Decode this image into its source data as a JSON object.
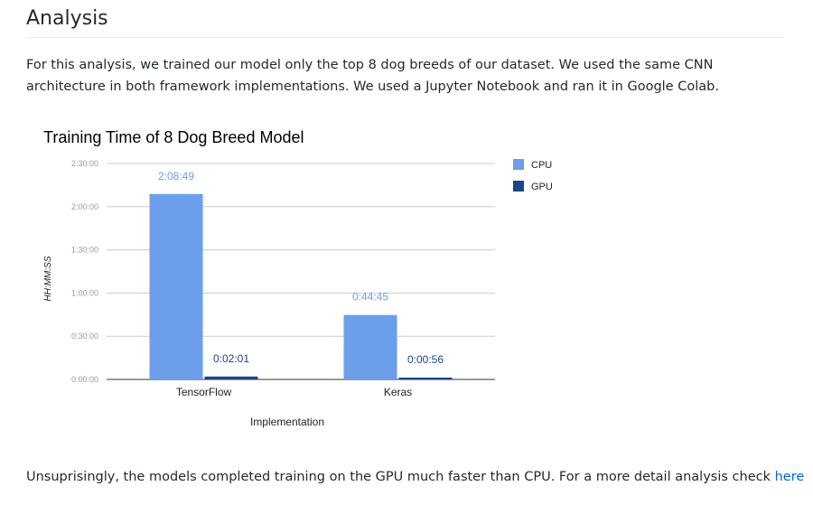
{
  "section": {
    "heading": "Analysis",
    "intro": "For this analysis, we trained our model only the top 8 dog breeds of our dataset. We used the same CNN architecture in both framework implementations. We used a Jupyter Notebook and ran it in Google Colab.",
    "outro_text": "Unsuprisingly, the models completed training on the GPU much faster than CPU. For a more detail analysis check ",
    "outro_link": "here"
  },
  "colors": {
    "cpu": "#6d9eeb",
    "gpu": "#1c4587",
    "gridline": "#cccccc",
    "axis_text": "#999999",
    "cpu_label": "#6d9eeb",
    "gpu_label": "#1c4587",
    "link": "#0366d6"
  },
  "chart_data": {
    "type": "bar",
    "title": "Training Time of 8 Dog Breed Model",
    "xlabel": "Implementation",
    "ylabel": "HH:MM:SS",
    "y_unit": "seconds",
    "ylim": [
      0,
      9000
    ],
    "yticks": [
      0,
      1800,
      3600,
      5400,
      7200,
      9000
    ],
    "ytick_labels": [
      "0:00:00",
      "0:30:00",
      "1:00:00",
      "1:30:00",
      "2:00:00",
      "2:30:00"
    ],
    "grid": true,
    "legend_position": "right",
    "categories": [
      "TensorFlow",
      "Keras"
    ],
    "series": [
      {
        "name": "CPU",
        "values": [
          7729,
          2685
        ],
        "data_labels": [
          "2:08:49",
          "0:44:45"
        ]
      },
      {
        "name": "GPU",
        "values": [
          121,
          56
        ],
        "data_labels": [
          "0:02:01",
          "0:00:56"
        ]
      }
    ]
  }
}
